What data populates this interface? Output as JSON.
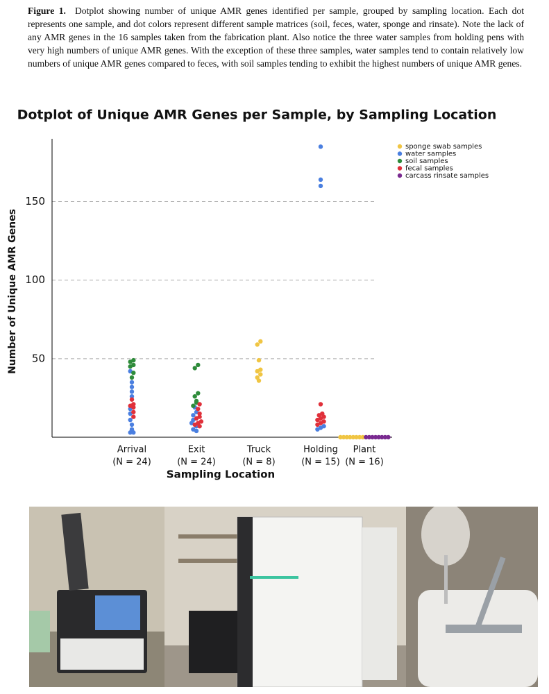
{
  "caption": {
    "label": "Figure 1.",
    "text": "Dotplot showing number of unique AMR genes identified per sample, grouped by sampling location. Each dot represents one sample, and dot colors represent different sample matrices (soil, feces, water, sponge and rinsate). Note the lack of any AMR genes in the 16 samples taken from the fabrication plant. Also notice the three water samples from holding pens with very high numbers of unique AMR genes. With the exception of these three samples, water samples tend to contain relatively low numbers of unique AMR genes compared to feces, with soil samples tending to exhibit the highest numbers of unique AMR genes."
  },
  "chart_data": {
    "type": "dotplot",
    "title": "Dotplot of Unique AMR Genes per Sample, by Sampling Location",
    "x_label": "Sampling Location",
    "y_label": "Number of Unique AMR Genes",
    "categories": [
      "Arrival",
      "Exit",
      "Truck",
      "Holding",
      "Plant"
    ],
    "category_counts": [
      "(N = 24)",
      "(N = 24)",
      "(N = 8)",
      "(N = 15)",
      "(N = 16)"
    ],
    "ylim": [
      0,
      190
    ],
    "yticks": [
      50,
      100,
      150
    ],
    "grid": true,
    "legend": "top-right",
    "series": [
      {
        "name": "sponge swab samples",
        "color": "#f0c543",
        "x": [
          "Truck",
          "Truck",
          "Truck",
          "Truck",
          "Truck",
          "Truck",
          "Truck",
          "Truck",
          "Plant",
          "Plant",
          "Plant",
          "Plant",
          "Plant",
          "Plant",
          "Plant",
          "Plant"
        ],
        "values": [
          36,
          38,
          40,
          42,
          43,
          49,
          59,
          61,
          0,
          0,
          0,
          0,
          0,
          0,
          0,
          0
        ]
      },
      {
        "name": "water samples",
        "color": "#4a7fe0",
        "x": [
          "Arrival",
          "Arrival",
          "Arrival",
          "Arrival",
          "Arrival",
          "Arrival",
          "Arrival",
          "Arrival",
          "Arrival",
          "Arrival",
          "Arrival",
          "Arrival",
          "Exit",
          "Exit",
          "Exit",
          "Exit",
          "Exit",
          "Exit",
          "Exit",
          "Exit",
          "Holding",
          "Holding",
          "Holding",
          "Holding",
          "Holding",
          "Holding"
        ],
        "values": [
          3,
          3,
          5,
          8,
          11,
          15,
          18,
          26,
          29,
          32,
          35,
          42,
          4,
          5,
          7,
          9,
          11,
          14,
          16,
          19,
          5,
          6,
          7,
          160,
          164,
          185
        ]
      },
      {
        "name": "soil samples",
        "color": "#2e8b3a",
        "x": [
          "Arrival",
          "Arrival",
          "Arrival",
          "Arrival",
          "Arrival",
          "Arrival",
          "Exit",
          "Exit",
          "Exit",
          "Exit",
          "Exit",
          "Exit",
          "Exit"
        ],
        "values": [
          38,
          41,
          45,
          46,
          48,
          49,
          20,
          22,
          23,
          26,
          28,
          44,
          46
        ]
      },
      {
        "name": "fecal samples",
        "color": "#e0303a",
        "x": [
          "Arrival",
          "Arrival",
          "Arrival",
          "Arrival",
          "Arrival",
          "Arrival",
          "Exit",
          "Exit",
          "Exit",
          "Exit",
          "Exit",
          "Exit",
          "Exit",
          "Exit",
          "Exit",
          "Holding",
          "Holding",
          "Holding",
          "Holding",
          "Holding",
          "Holding",
          "Holding",
          "Holding",
          "Holding"
        ],
        "values": [
          13,
          16,
          19,
          20,
          21,
          24,
          7,
          8,
          9,
          10,
          12,
          13,
          15,
          18,
          21,
          8,
          9,
          10,
          11,
          12,
          13,
          14,
          15,
          21
        ]
      },
      {
        "name": "carcass rinsate samples",
        "color": "#7a2a90",
        "x": [
          "Plant",
          "Plant",
          "Plant",
          "Plant",
          "Plant",
          "Plant",
          "Plant",
          "Plant"
        ],
        "values": [
          0,
          0,
          0,
          0,
          0,
          0,
          0,
          0
        ]
      }
    ]
  }
}
